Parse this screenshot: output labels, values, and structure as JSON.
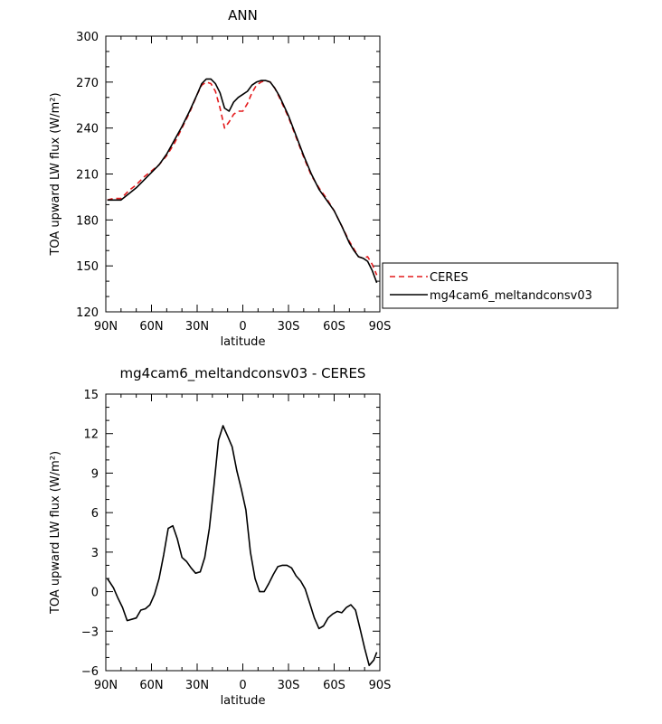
{
  "chart_data": [
    {
      "type": "line",
      "title": "ANN",
      "xlabel": "latitude",
      "ylabel": "TOA upward LW flux (W/m²)",
      "xlim": [
        90,
        -90
      ],
      "ylim": [
        120,
        300
      ],
      "x_ticks": [
        90,
        60,
        30,
        0,
        -30,
        -60,
        -90
      ],
      "x_tick_labels": [
        "90N",
        "60N",
        "30N",
        "0",
        "30S",
        "60S",
        "90S"
      ],
      "y_ticks": [
        120,
        150,
        180,
        210,
        240,
        270,
        300
      ],
      "y_tick_labels": [
        "120",
        "150",
        "180",
        "210",
        "240",
        "270",
        "300"
      ],
      "legend_position": "outside-right",
      "series": [
        {
          "name": "CERES",
          "color": "#e41a1c",
          "dash": "dashed",
          "x": [
            89,
            85,
            80,
            75,
            70,
            65,
            60,
            55,
            50,
            45,
            40,
            35,
            30,
            27,
            24,
            21,
            18,
            15,
            12,
            9,
            6,
            3,
            0,
            -3,
            -6,
            -9,
            -12,
            -15,
            -18,
            -21,
            -24,
            -30,
            -35,
            -40,
            -45,
            -50,
            -55,
            -60,
            -65,
            -70,
            -73,
            -76,
            -79,
            -82,
            -85,
            -88
          ],
          "y": [
            193,
            194,
            194,
            199,
            203,
            208,
            212,
            216,
            222,
            230,
            240,
            250,
            262,
            268,
            270,
            269,
            264,
            253,
            240,
            244,
            249,
            251,
            251,
            256,
            263,
            268,
            270,
            271,
            270,
            266,
            260,
            247,
            234,
            221,
            209,
            201,
            194,
            186,
            176,
            166,
            161,
            156,
            155,
            156,
            151,
            144
          ]
        },
        {
          "name": "mg4cam6_meltandconsv03",
          "color": "#000000",
          "dash": "solid",
          "x": [
            89,
            85,
            80,
            75,
            70,
            65,
            60,
            55,
            50,
            45,
            40,
            35,
            30,
            27,
            24,
            21,
            18,
            15,
            12,
            9,
            6,
            3,
            0,
            -3,
            -6,
            -9,
            -12,
            -15,
            -18,
            -21,
            -24,
            -30,
            -35,
            -40,
            -45,
            -50,
            -55,
            -60,
            -65,
            -70,
            -73,
            -76,
            -79,
            -82,
            -85,
            -88
          ],
          "y": [
            193,
            193,
            193,
            197,
            201,
            206,
            211,
            216,
            223,
            232,
            241,
            251,
            262,
            269,
            272,
            272,
            269,
            263,
            253,
            251,
            257,
            260,
            262,
            264,
            268,
            270,
            271,
            271,
            270,
            266,
            261,
            248,
            235,
            222,
            210,
            200,
            193,
            186,
            176,
            165,
            160,
            156,
            155,
            153,
            147,
            139
          ]
        }
      ]
    },
    {
      "type": "line",
      "title": "mg4cam6_meltandconsv03 - CERES",
      "xlabel": "latitude",
      "ylabel": "TOA upward LW flux (W/m²)",
      "xlim": [
        90,
        -90
      ],
      "ylim": [
        -6,
        15
      ],
      "x_ticks": [
        90,
        60,
        30,
        0,
        -30,
        -60,
        -90
      ],
      "x_tick_labels": [
        "90N",
        "60N",
        "30N",
        "0",
        "30S",
        "60S",
        "90S"
      ],
      "y_ticks": [
        -6,
        -3,
        0,
        3,
        6,
        9,
        12,
        15
      ],
      "y_tick_labels": [
        "−6",
        "−3",
        "0",
        "3",
        "6",
        "9",
        "12",
        "15"
      ],
      "series": [
        {
          "color": "#000000",
          "dash": "solid",
          "x": [
            89,
            85,
            82,
            79,
            76,
            73,
            70,
            67,
            64,
            61,
            58,
            55,
            52,
            49,
            46,
            43,
            40,
            37,
            34,
            31,
            28,
            25,
            22,
            19,
            16,
            13,
            10,
            7,
            4,
            1,
            -2,
            -5,
            -8,
            -11,
            -14,
            -17,
            -20,
            -23,
            -26,
            -29,
            -32,
            -35,
            -38,
            -41,
            -44,
            -47,
            -50,
            -53,
            -56,
            -59,
            -62,
            -65,
            -68,
            -71,
            -74,
            -77,
            -80,
            -83,
            -86,
            -88
          ],
          "y": [
            1.0,
            0.3,
            -0.5,
            -1.2,
            -2.2,
            -2.1,
            -2.0,
            -1.4,
            -1.3,
            -1.0,
            -0.2,
            1.0,
            2.8,
            4.8,
            5.0,
            4.0,
            2.6,
            2.3,
            1.8,
            1.4,
            1.5,
            2.6,
            4.8,
            8.0,
            11.5,
            12.6,
            11.8,
            11.0,
            9.2,
            7.8,
            6.2,
            3.0,
            1.0,
            0.0,
            0.0,
            0.6,
            1.3,
            1.9,
            2.0,
            2.0,
            1.8,
            1.2,
            0.8,
            0.2,
            -0.9,
            -2.0,
            -2.8,
            -2.6,
            -2.0,
            -1.7,
            -1.5,
            -1.6,
            -1.2,
            -1.0,
            -1.4,
            -2.8,
            -4.3,
            -5.6,
            -5.2,
            -4.6
          ]
        }
      ]
    }
  ]
}
